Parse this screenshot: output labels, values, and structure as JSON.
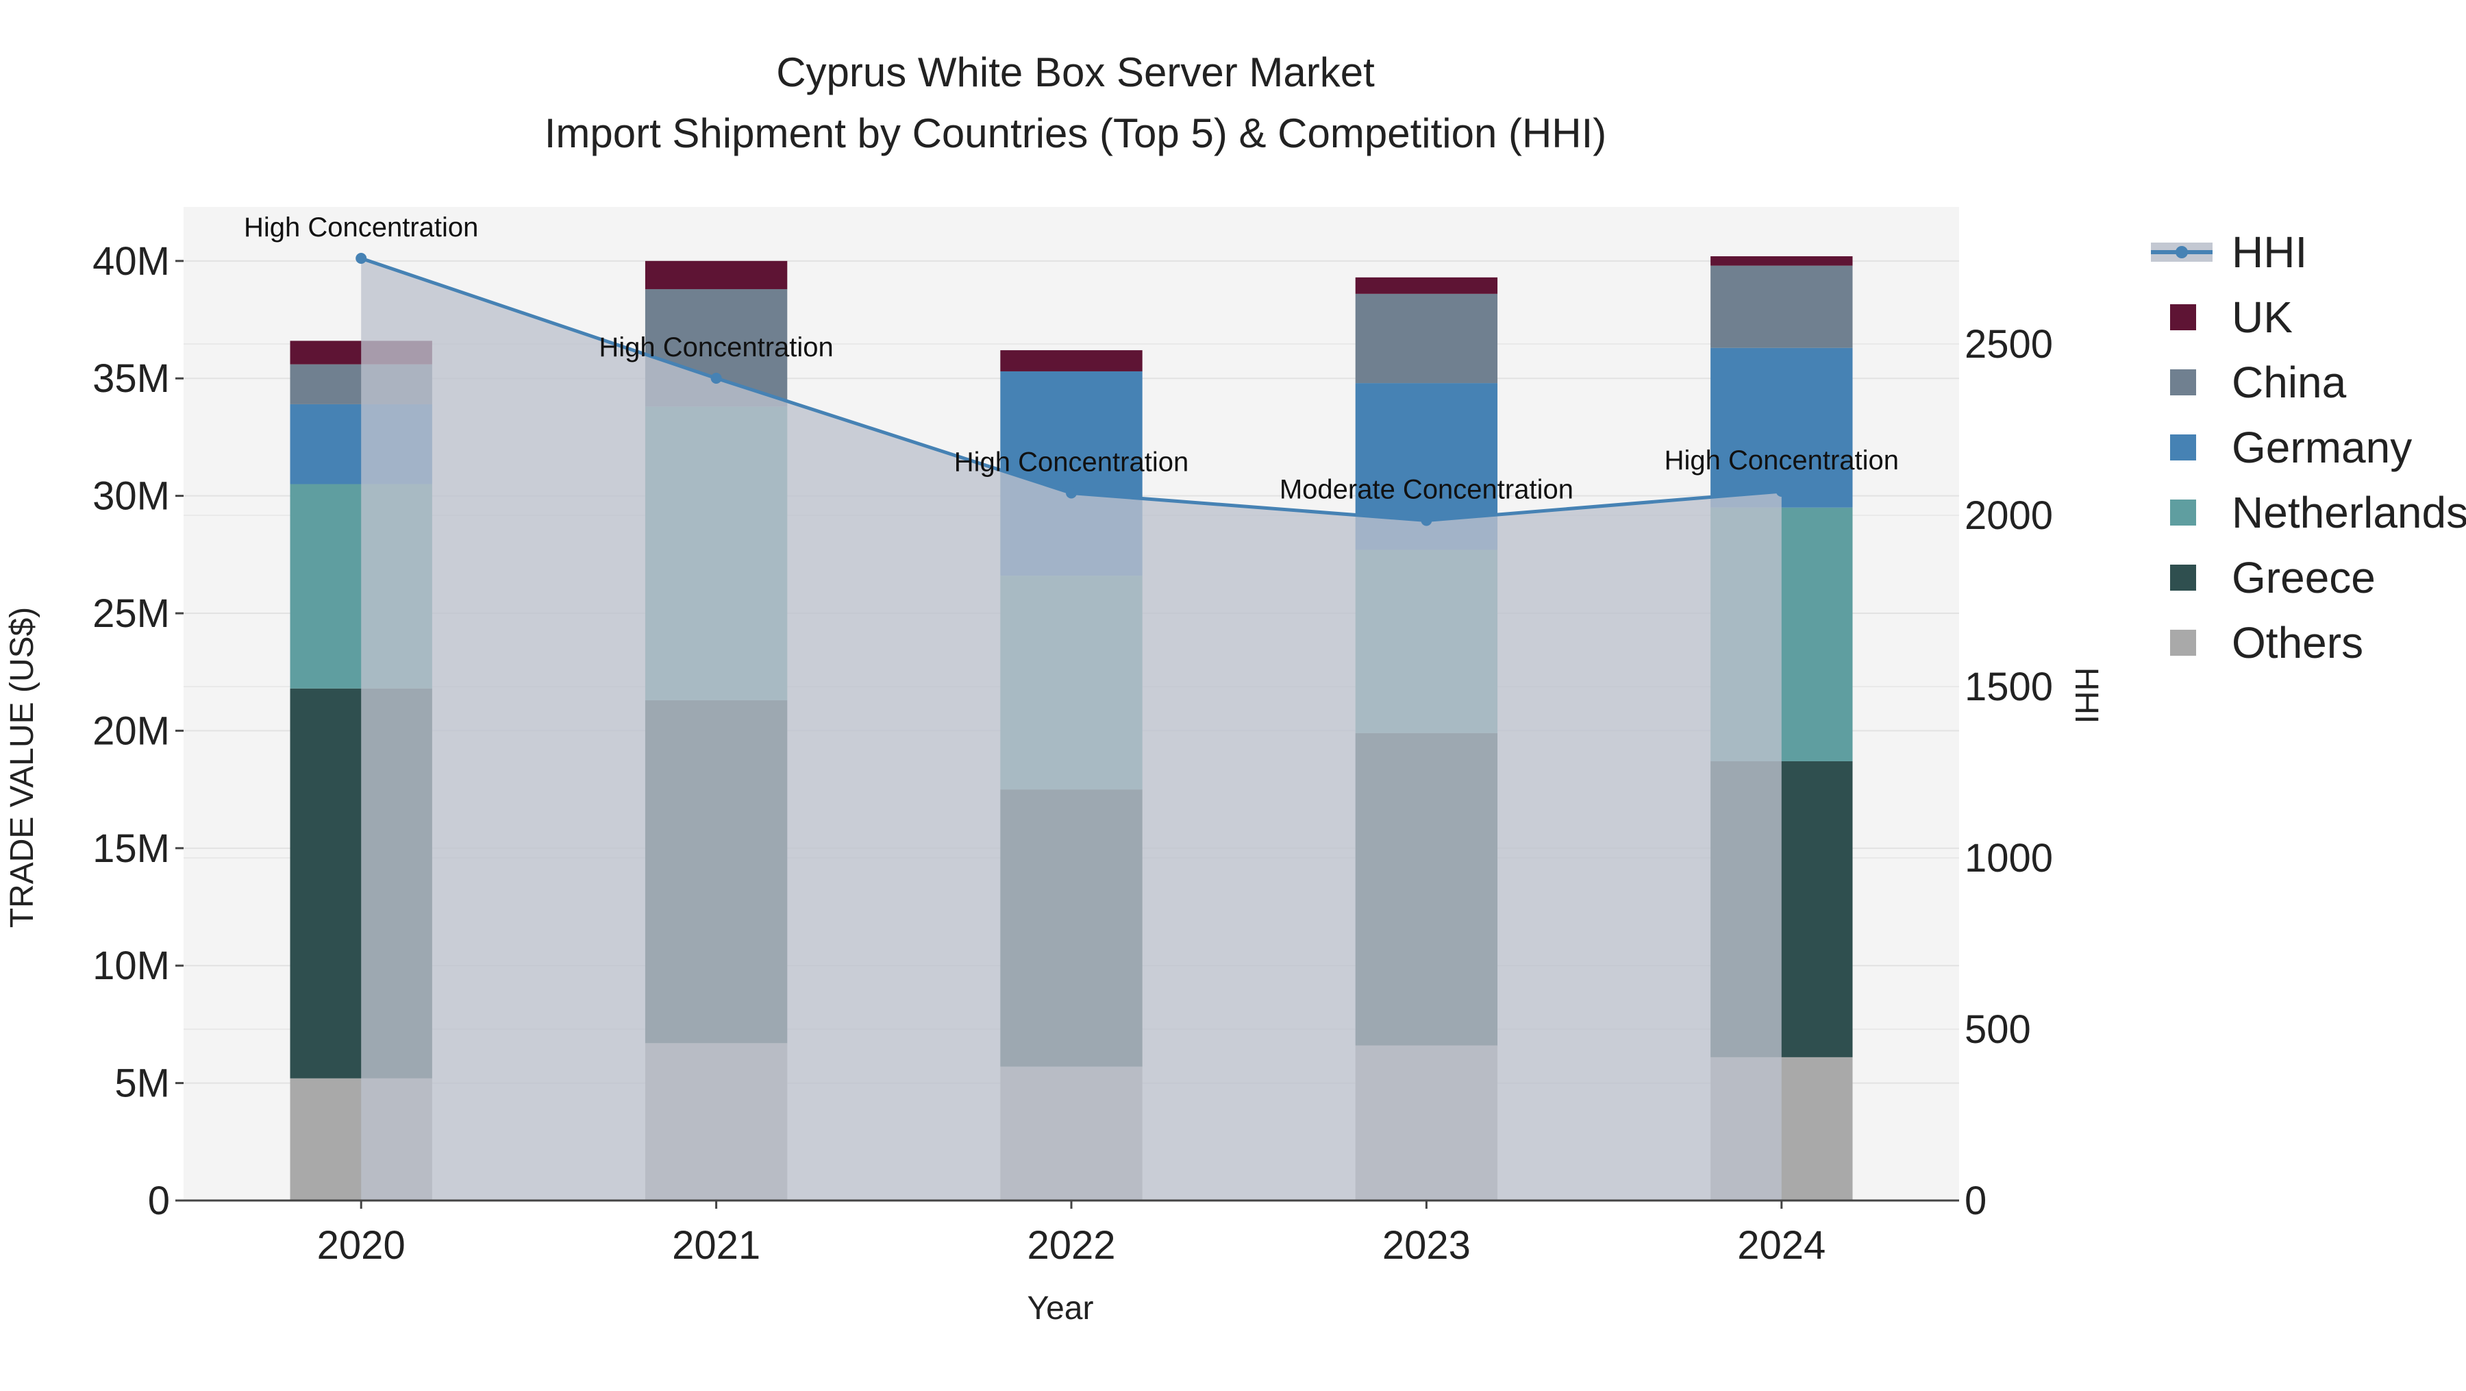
{
  "chart_data": {
    "type": "bar",
    "title_line1": "Cyprus White Box Server Market",
    "title_line2": "Import Shipment by Countries (Top 5) & Competition (HHI)",
    "xlabel": "Year",
    "ylabel": "TRADE VALUE (US$)",
    "y2label": "HHI",
    "categories": [
      "2020",
      "2021",
      "2022",
      "2023",
      "2024"
    ],
    "ylim": [
      0,
      42300000
    ],
    "y2lim": [
      0,
      2900
    ],
    "yticks": [
      0,
      5000000,
      10000000,
      15000000,
      20000000,
      25000000,
      30000000,
      35000000,
      40000000
    ],
    "ytick_labels": [
      "0",
      "5M",
      "10M",
      "15M",
      "20M",
      "25M",
      "30M",
      "35M",
      "40M"
    ],
    "y2ticks": [
      0,
      500,
      1000,
      1500,
      2000,
      2500
    ],
    "y2tick_labels": [
      "0",
      "500",
      "1000",
      "1500",
      "2000",
      "2500"
    ],
    "series": [
      {
        "name": "Others",
        "color": "#a9a9a9",
        "values": [
          5200000,
          6700000,
          5700000,
          6600000,
          6100000
        ]
      },
      {
        "name": "Greece",
        "color": "#2f4f4f",
        "values": [
          16600000,
          14600000,
          11800000,
          13300000,
          12600000
        ]
      },
      {
        "name": "Netherlands",
        "color": "#5f9ea0",
        "values": [
          8700000,
          12500000,
          9100000,
          7800000,
          10800000
        ]
      },
      {
        "name": "Germany",
        "color": "#4682b4",
        "values": [
          3400000,
          0,
          8700000,
          7100000,
          6800000
        ]
      },
      {
        "name": "China",
        "color": "#708090",
        "values": [
          1700000,
          5000000,
          0,
          3800000,
          3500000
        ]
      },
      {
        "name": "UK",
        "color": "#5e1434",
        "values": [
          1000000,
          1200000,
          900000,
          700000,
          400000
        ]
      }
    ],
    "hhi": {
      "name": "HHI",
      "color": "#4682b4",
      "values": [
        2750,
        2400,
        2065,
        1985,
        2070
      ],
      "labels": [
        "High Concentration",
        "High Concentration",
        "High Concentration",
        "Moderate Concentration",
        "High Concentration"
      ]
    },
    "legend_order": [
      "HHI",
      "UK",
      "China",
      "Germany",
      "Netherlands",
      "Greece",
      "Others"
    ],
    "legend_position": "right"
  }
}
